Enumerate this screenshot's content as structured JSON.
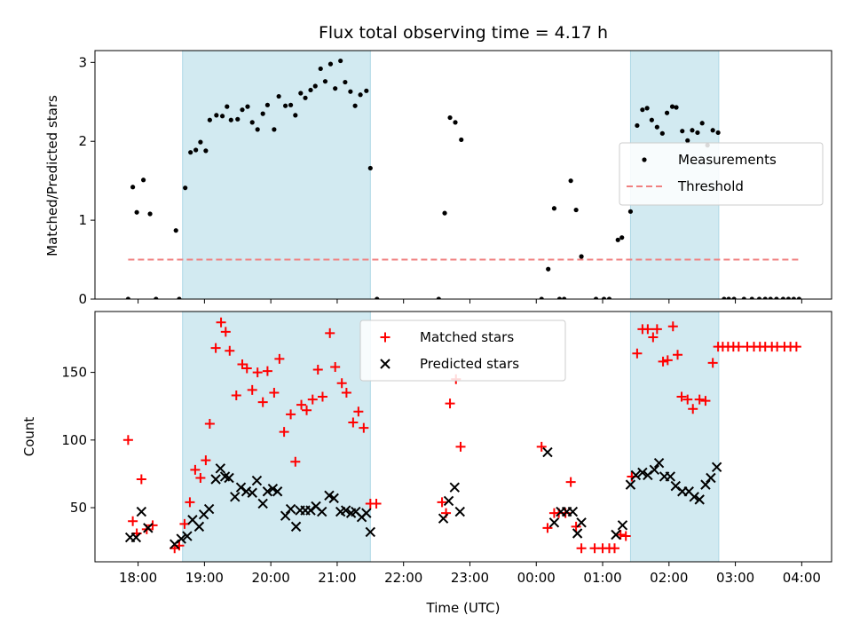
{
  "chart_data": {
    "type": "scatter",
    "title": "Flux total observing time = 4.17 h",
    "xlabel": "Time (UTC)",
    "x_unit": "hours since 00:00 of first day",
    "xlim": [
      17.35,
      28.45
    ],
    "x_ticks": [
      {
        "value": 18,
        "label": "18:00"
      },
      {
        "value": 19,
        "label": "19:00"
      },
      {
        "value": 20,
        "label": "20:00"
      },
      {
        "value": 21,
        "label": "21:00"
      },
      {
        "value": 22,
        "label": "22:00"
      },
      {
        "value": 23,
        "label": "23:00"
      },
      {
        "value": 24,
        "label": "00:00"
      },
      {
        "value": 25,
        "label": "01:00"
      },
      {
        "value": 26,
        "label": "02:00"
      },
      {
        "value": 27,
        "label": "03:00"
      },
      {
        "value": 28,
        "label": "04:00"
      }
    ],
    "shaded_intervals": [
      [
        18.67,
        21.5
      ],
      [
        25.42,
        26.75
      ]
    ],
    "shade_color": "#add8e6",
    "top": {
      "ylabel": "Matched/Predicted stars",
      "ylim": [
        0,
        3.15
      ],
      "y_ticks": [
        0,
        1,
        2,
        3
      ],
      "threshold": {
        "name": "Threshold",
        "value": 0.5,
        "x_range": [
          17.85,
          27.95
        ],
        "color": "#f08080"
      },
      "series": [
        {
          "name": "Measurements",
          "color": "#000000",
          "points": [
            [
              17.85,
              0
            ],
            [
              17.92,
              1.42
            ],
            [
              17.98,
              1.1
            ],
            [
              18.08,
              1.51
            ],
            [
              18.18,
              1.08
            ],
            [
              18.27,
              0
            ],
            [
              18.57,
              0.87
            ],
            [
              18.62,
              0
            ],
            [
              18.71,
              1.41
            ],
            [
              18.79,
              1.86
            ],
            [
              18.87,
              1.89
            ],
            [
              18.94,
              1.99
            ],
            [
              19.02,
              1.88
            ],
            [
              19.08,
              2.27
            ],
            [
              19.18,
              2.33
            ],
            [
              19.27,
              2.32
            ],
            [
              19.34,
              2.44
            ],
            [
              19.4,
              2.27
            ],
            [
              19.5,
              2.28
            ],
            [
              19.57,
              2.4
            ],
            [
              19.65,
              2.44
            ],
            [
              19.72,
              2.24
            ],
            [
              19.8,
              2.15
            ],
            [
              19.88,
              2.35
            ],
            [
              19.95,
              2.46
            ],
            [
              20.05,
              2.15
            ],
            [
              20.12,
              2.57
            ],
            [
              20.22,
              2.45
            ],
            [
              20.3,
              2.46
            ],
            [
              20.37,
              2.33
            ],
            [
              20.45,
              2.61
            ],
            [
              20.52,
              2.55
            ],
            [
              20.6,
              2.65
            ],
            [
              20.67,
              2.7
            ],
            [
              20.75,
              2.92
            ],
            [
              20.82,
              2.76
            ],
            [
              20.9,
              2.98
            ],
            [
              20.97,
              2.67
            ],
            [
              21.05,
              3.02
            ],
            [
              21.12,
              2.75
            ],
            [
              21.2,
              2.63
            ],
            [
              21.27,
              2.45
            ],
            [
              21.35,
              2.59
            ],
            [
              21.44,
              2.64
            ],
            [
              21.5,
              1.66
            ],
            [
              21.6,
              0
            ],
            [
              22.53,
              0
            ],
            [
              22.62,
              1.09
            ],
            [
              22.7,
              2.3
            ],
            [
              22.78,
              2.24
            ],
            [
              22.87,
              2.02
            ],
            [
              24.08,
              0
            ],
            [
              24.18,
              0.38
            ],
            [
              24.27,
              1.15
            ],
            [
              24.35,
              0
            ],
            [
              24.42,
              0
            ],
            [
              24.52,
              1.5
            ],
            [
              24.6,
              1.13
            ],
            [
              24.68,
              0.54
            ],
            [
              24.9,
              0
            ],
            [
              25.02,
              0
            ],
            [
              25.1,
              0
            ],
            [
              25.23,
              0.75
            ],
            [
              25.29,
              0.78
            ],
            [
              25.42,
              1.11
            ],
            [
              25.52,
              2.2
            ],
            [
              25.6,
              2.4
            ],
            [
              25.67,
              2.42
            ],
            [
              25.74,
              2.27
            ],
            [
              25.82,
              2.18
            ],
            [
              25.9,
              2.1
            ],
            [
              25.97,
              2.36
            ],
            [
              26.05,
              2.44
            ],
            [
              26.11,
              2.43
            ],
            [
              26.2,
              2.13
            ],
            [
              26.28,
              2.01
            ],
            [
              26.35,
              2.14
            ],
            [
              26.43,
              2.11
            ],
            [
              26.5,
              2.23
            ],
            [
              26.58,
              1.95
            ],
            [
              26.66,
              2.14
            ],
            [
              26.74,
              2.11
            ],
            [
              26.83,
              0
            ],
            [
              26.9,
              0
            ],
            [
              26.98,
              0
            ],
            [
              27.13,
              0
            ],
            [
              27.25,
              0
            ],
            [
              27.36,
              0
            ],
            [
              27.45,
              0
            ],
            [
              27.53,
              0
            ],
            [
              27.62,
              0
            ],
            [
              27.72,
              0
            ],
            [
              27.8,
              0
            ],
            [
              27.88,
              0
            ],
            [
              27.96,
              0
            ]
          ]
        }
      ]
    },
    "bottom": {
      "ylabel": "Count",
      "ylim": [
        10,
        195
      ],
      "y_ticks": [
        50,
        100,
        150
      ],
      "series": [
        {
          "name": "Matched stars",
          "marker": "plus",
          "color": "#ff0000",
          "points": [
            [
              17.85,
              100
            ],
            [
              17.92,
              40
            ],
            [
              17.98,
              31
            ],
            [
              18.05,
              71
            ],
            [
              18.13,
              34
            ],
            [
              18.22,
              37
            ],
            [
              18.55,
              20
            ],
            [
              18.62,
              22
            ],
            [
              18.7,
              38
            ],
            [
              18.78,
              54
            ],
            [
              18.86,
              78
            ],
            [
              18.94,
              72
            ],
            [
              19.02,
              85
            ],
            [
              19.08,
              112
            ],
            [
              19.17,
              168
            ],
            [
              19.25,
              187
            ],
            [
              19.32,
              180
            ],
            [
              19.38,
              166
            ],
            [
              19.48,
              133
            ],
            [
              19.57,
              156
            ],
            [
              19.64,
              153
            ],
            [
              19.72,
              137
            ],
            [
              19.8,
              150
            ],
            [
              19.88,
              128
            ],
            [
              19.95,
              151
            ],
            [
              20.05,
              135
            ],
            [
              20.13,
              160
            ],
            [
              20.2,
              106
            ],
            [
              20.3,
              119
            ],
            [
              20.37,
              84
            ],
            [
              20.46,
              126
            ],
            [
              20.54,
              122
            ],
            [
              20.63,
              130
            ],
            [
              20.71,
              152
            ],
            [
              20.78,
              132
            ],
            [
              20.89,
              179
            ],
            [
              20.97,
              154
            ],
            [
              21.07,
              142
            ],
            [
              21.14,
              135
            ],
            [
              21.24,
              113
            ],
            [
              21.32,
              121
            ],
            [
              21.4,
              109
            ],
            [
              21.5,
              53
            ],
            [
              21.59,
              53
            ],
            [
              22.58,
              54
            ],
            [
              22.64,
              46
            ],
            [
              22.7,
              127
            ],
            [
              22.79,
              145
            ],
            [
              22.86,
              95
            ],
            [
              24.08,
              95
            ],
            [
              24.17,
              35
            ],
            [
              24.27,
              46
            ],
            [
              24.34,
              46
            ],
            [
              24.44,
              46
            ],
            [
              24.52,
              69
            ],
            [
              24.6,
              36
            ],
            [
              24.68,
              20
            ],
            [
              24.88,
              20
            ],
            [
              25.0,
              20
            ],
            [
              25.1,
              20
            ],
            [
              25.18,
              20
            ],
            [
              25.27,
              30
            ],
            [
              25.35,
              29
            ],
            [
              25.44,
              73
            ],
            [
              25.52,
              164
            ],
            [
              25.6,
              182
            ],
            [
              25.68,
              182
            ],
            [
              25.76,
              176
            ],
            [
              25.82,
              182
            ],
            [
              25.91,
              158
            ],
            [
              25.98,
              159
            ],
            [
              26.06,
              184
            ],
            [
              26.13,
              163
            ],
            [
              26.19,
              132
            ],
            [
              26.28,
              130
            ],
            [
              26.36,
              123
            ],
            [
              26.46,
              130
            ],
            [
              26.55,
              129
            ],
            [
              26.66,
              157
            ],
            [
              26.74,
              169
            ],
            [
              26.81,
              169
            ],
            [
              26.89,
              169
            ],
            [
              26.97,
              169
            ],
            [
              27.05,
              169
            ],
            [
              27.18,
              169
            ],
            [
              27.28,
              169
            ],
            [
              27.37,
              169
            ],
            [
              27.45,
              169
            ],
            [
              27.55,
              169
            ],
            [
              27.63,
              169
            ],
            [
              27.74,
              169
            ],
            [
              27.83,
              169
            ],
            [
              27.92,
              169
            ]
          ]
        },
        {
          "name": "Predicted stars",
          "marker": "x",
          "color": "#000000",
          "points": [
            [
              17.88,
              28
            ],
            [
              17.97,
              28
            ],
            [
              18.05,
              47
            ],
            [
              18.15,
              35
            ],
            [
              18.55,
              23
            ],
            [
              18.65,
              27
            ],
            [
              18.74,
              29
            ],
            [
              18.82,
              41
            ],
            [
              18.92,
              36
            ],
            [
              18.99,
              45
            ],
            [
              19.07,
              49
            ],
            [
              19.17,
              71
            ],
            [
              19.24,
              79
            ],
            [
              19.31,
              73
            ],
            [
              19.37,
              72
            ],
            [
              19.46,
              58
            ],
            [
              19.55,
              65
            ],
            [
              19.63,
              62
            ],
            [
              19.72,
              61
            ],
            [
              19.79,
              70
            ],
            [
              19.88,
              53
            ],
            [
              19.95,
              62
            ],
            [
              20.03,
              64
            ],
            [
              20.1,
              62
            ],
            [
              20.22,
              44
            ],
            [
              20.3,
              49
            ],
            [
              20.38,
              36
            ],
            [
              20.44,
              48
            ],
            [
              20.52,
              48
            ],
            [
              20.6,
              48
            ],
            [
              20.68,
              51
            ],
            [
              20.77,
              47
            ],
            [
              20.88,
              59
            ],
            [
              20.95,
              57
            ],
            [
              21.05,
              47
            ],
            [
              21.13,
              48
            ],
            [
              21.21,
              46
            ],
            [
              21.28,
              47
            ],
            [
              21.37,
              43
            ],
            [
              21.44,
              46
            ],
            [
              21.5,
              32
            ],
            [
              22.6,
              42
            ],
            [
              22.68,
              55
            ],
            [
              22.77,
              65
            ],
            [
              22.85,
              47
            ],
            [
              24.17,
              91
            ],
            [
              24.27,
              39
            ],
            [
              24.37,
              47
            ],
            [
              24.46,
              47
            ],
            [
              24.55,
              47
            ],
            [
              24.62,
              31
            ],
            [
              24.68,
              39
            ],
            [
              25.2,
              30
            ],
            [
              25.3,
              37
            ],
            [
              25.42,
              67
            ],
            [
              25.5,
              74
            ],
            [
              25.6,
              76
            ],
            [
              25.68,
              74
            ],
            [
              25.78,
              78
            ],
            [
              25.85,
              83
            ],
            [
              25.93,
              73
            ],
            [
              26.02,
              73
            ],
            [
              26.1,
              66
            ],
            [
              26.2,
              62
            ],
            [
              26.3,
              62
            ],
            [
              26.38,
              58
            ],
            [
              26.46,
              56
            ],
            [
              26.55,
              67
            ],
            [
              26.63,
              72
            ],
            [
              26.72,
              80
            ]
          ]
        }
      ]
    },
    "legends": {
      "top": [
        {
          "label": "Measurements",
          "marker": "dot"
        },
        {
          "label": "Threshold",
          "marker": "dash"
        }
      ],
      "bottom": [
        {
          "label": "Matched stars",
          "marker": "plus"
        },
        {
          "label": "Predicted stars",
          "marker": "x"
        }
      ]
    }
  }
}
